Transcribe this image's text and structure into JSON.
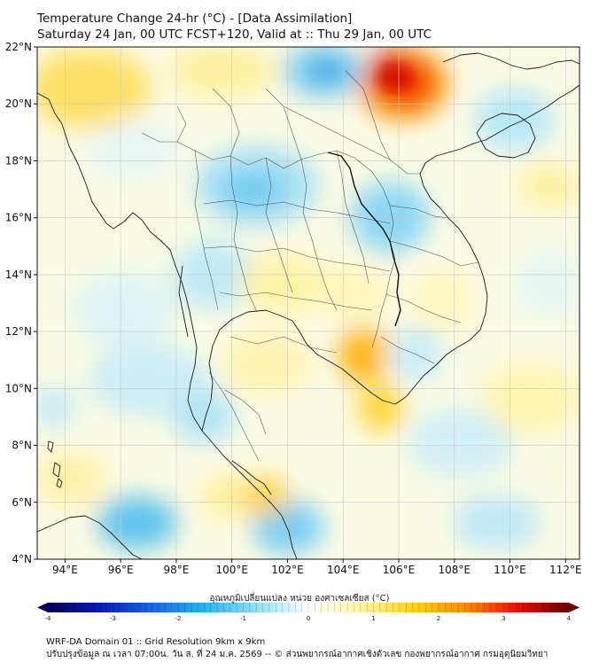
{
  "title": {
    "line1": "Temperature Change 24-hr (°C) - [Data Assimilation]",
    "line2": "Saturday 24 Jan, 00 UTC FCST+120, Valid at :: Thu 29 Jan, 00 UTC"
  },
  "map": {
    "lat_range": [
      4,
      22
    ],
    "lon_range": [
      93,
      112.5
    ],
    "lat_ticks": [
      "22°N",
      "20°N",
      "18°N",
      "16°N",
      "14°N",
      "12°N",
      "10°N",
      "8°N",
      "6°N",
      "4°N"
    ],
    "lat_values": [
      22,
      20,
      18,
      16,
      14,
      12,
      10,
      8,
      6,
      4
    ],
    "lon_ticks": [
      "94°E",
      "96°E",
      "98°E",
      "100°E",
      "102°E",
      "104°E",
      "106°E",
      "108°E",
      "110°E",
      "112°E"
    ],
    "lon_values": [
      94,
      96,
      98,
      100,
      102,
      104,
      106,
      108,
      110,
      112
    ],
    "colors": {
      "ocean_base": "#fbfbe6",
      "grid": "#c8c8c8",
      "border": "#222222"
    }
  },
  "colorbar": {
    "title": "อุณหภูมิเปลี่ยนแปลง หน่วย องศาเซลเซียส (°C)",
    "min": -4,
    "max": 4,
    "tick_labels": [
      "-4",
      "-3",
      "-2",
      "-1",
      "0",
      "1",
      "2",
      "3",
      "4"
    ]
  },
  "footer": {
    "line1": "WRF-DA Domain 01 :: Grid Resolution 9km x 9km",
    "line2": "ปรับปรุงข้อมูล ณ เวลา 07:00น. วัน ส. ที่ 24 ม.ค. 2569 -- © ส่วนพยากรณ์อากาศเชิงตัวเลข กองพยากรณ์อากาศ กรมอุตุนิยมวิทยา"
  }
}
